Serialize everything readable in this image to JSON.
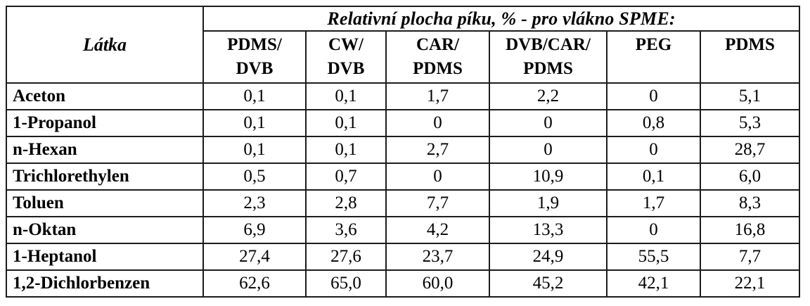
{
  "page": {
    "background": "#ffffff",
    "border_color": "#1c1c1c",
    "text_color": "#000000"
  },
  "table": {
    "span_header": "Relativní plocha píku, % - pro vlákno SPME:",
    "row_header_label": "Látka",
    "columns": [
      {
        "line1": "PDMS/",
        "line2": "DVB"
      },
      {
        "line1": "CW/",
        "line2": "DVB"
      },
      {
        "line1": "CAR/",
        "line2": "PDMS"
      },
      {
        "line1": "DVB/CAR/",
        "line2": "PDMS"
      },
      {
        "line1": "PEG",
        "line2": ""
      },
      {
        "line1": "PDMS",
        "line2": ""
      }
    ],
    "rows": [
      {
        "label": "Aceton",
        "values": [
          "0,1",
          "0,1",
          "1,7",
          "2,2",
          "0",
          "5,1"
        ]
      },
      {
        "label": "1-Propanol",
        "values": [
          "0,1",
          "0,1",
          "0",
          "0",
          "0,8",
          "5,3"
        ]
      },
      {
        "label": "n-Hexan",
        "values": [
          "0,1",
          "0,1",
          "2,7",
          "0",
          "0",
          "28,7"
        ]
      },
      {
        "label": "Trichlorethylen",
        "values": [
          "0,5",
          "0,7",
          "0",
          "10,9",
          "0,1",
          "6,0"
        ]
      },
      {
        "label": "Toluen",
        "values": [
          "2,3",
          "2,8",
          "7,7",
          "1,9",
          "1,7",
          "8,3"
        ]
      },
      {
        "label": "n-Oktan",
        "values": [
          "6,9",
          "3,6",
          "4,2",
          "13,3",
          "0",
          "16,8"
        ]
      },
      {
        "label": "1-Heptanol",
        "values": [
          "27,4",
          "27,6",
          "23,7",
          "24,9",
          "55,5",
          "7,7"
        ]
      },
      {
        "label": "1,2-Dichlorbenzen",
        "values": [
          "62,6",
          "65,0",
          "60,0",
          "45,2",
          "42,1",
          "22,1"
        ]
      }
    ]
  },
  "chart_data": {
    "type": "table",
    "title": "Relativní plocha píku, % - pro vlákno SPME:",
    "row_label_header": "Látka",
    "columns": [
      "PDMS/DVB",
      "CW/DVB",
      "CAR/PDMS",
      "DVB/CAR/PDMS",
      "PEG",
      "PDMS"
    ],
    "rows": [
      {
        "label": "Aceton",
        "values": [
          0.1,
          0.1,
          1.7,
          2.2,
          0,
          5.1
        ]
      },
      {
        "label": "1-Propanol",
        "values": [
          0.1,
          0.1,
          0,
          0,
          0.8,
          5.3
        ]
      },
      {
        "label": "n-Hexan",
        "values": [
          0.1,
          0.1,
          2.7,
          0,
          0,
          28.7
        ]
      },
      {
        "label": "Trichlorethylen",
        "values": [
          0.5,
          0.7,
          0,
          10.9,
          0.1,
          6.0
        ]
      },
      {
        "label": "Toluen",
        "values": [
          2.3,
          2.8,
          7.7,
          1.9,
          1.7,
          8.3
        ]
      },
      {
        "label": "n-Oktan",
        "values": [
          6.9,
          3.6,
          4.2,
          13.3,
          0,
          16.8
        ]
      },
      {
        "label": "1-Heptanol",
        "values": [
          27.4,
          27.6,
          23.7,
          24.9,
          55.5,
          7.7
        ]
      },
      {
        "label": "1,2-Dichlorbenzen",
        "values": [
          62.6,
          65.0,
          60.0,
          45.2,
          42.1,
          22.1
        ]
      }
    ]
  }
}
